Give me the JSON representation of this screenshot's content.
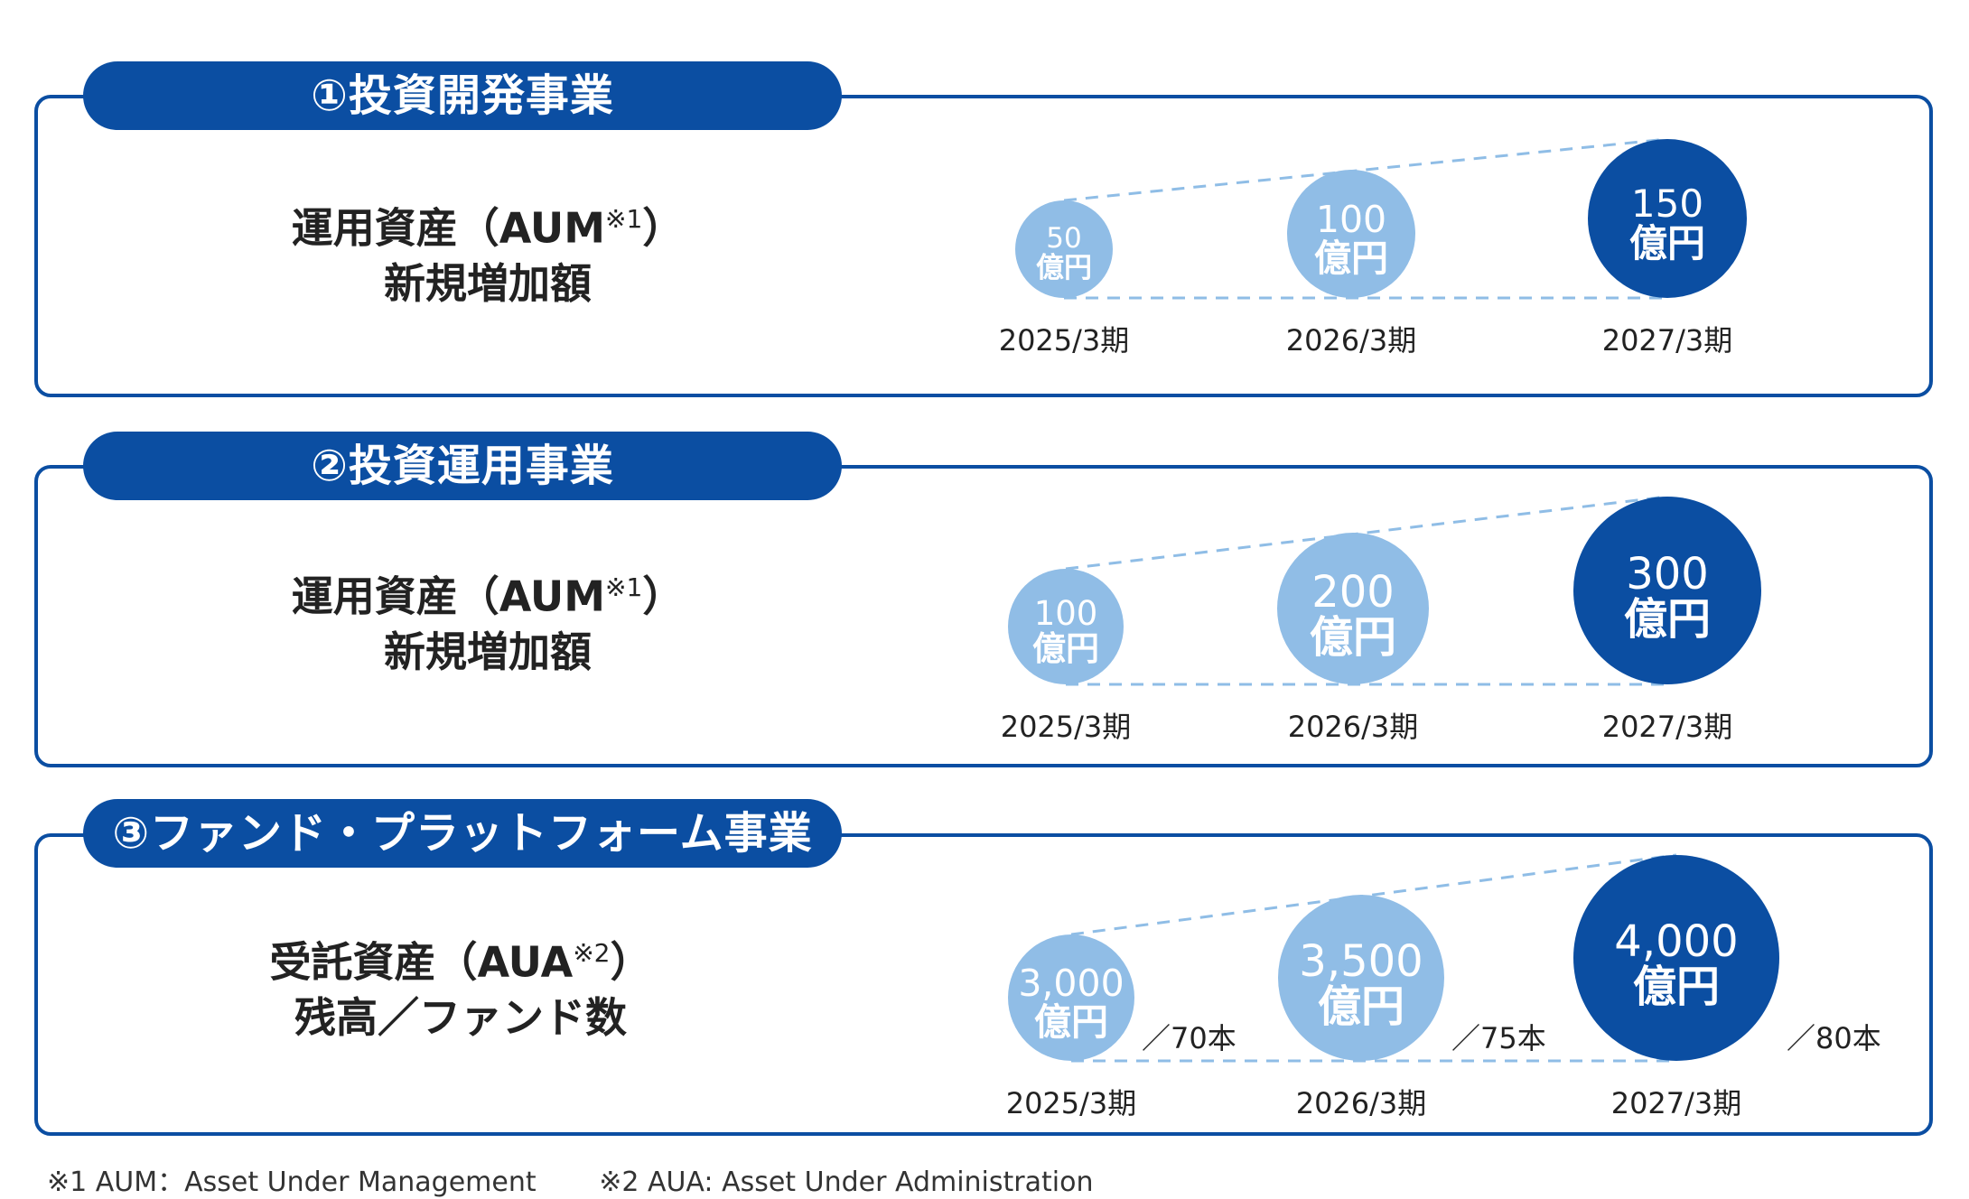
{
  "colors": {
    "primary": "#0b4ea2",
    "light": "#90bde6",
    "dashed": "#8fbde6"
  },
  "sections": [
    {
      "header": "①投資開発事業",
      "metric_line1": "運用資産（AUM",
      "metric_note": "※1",
      "metric_line1_end": "）",
      "metric_line2": "新規増加額"
    },
    {
      "header": "②投資運用事業",
      "metric_line1": "運用資産（AUM",
      "metric_note": "※1",
      "metric_line1_end": "）",
      "metric_line2": "新規増加額"
    },
    {
      "header": "③ファンド・プラットフォーム事業",
      "metric_line1": "受託資産（AUA",
      "metric_note": "※2",
      "metric_line1_end": "）",
      "metric_line2": "残高／ファンド数"
    }
  ],
  "chart_data": [
    {
      "type": "bubble",
      "categories": [
        "2025/3期",
        "2026/3期",
        "2027/3期"
      ],
      "values": [
        50,
        100,
        150
      ],
      "value_labels": [
        "50",
        "100",
        "150"
      ],
      "unit": "億円"
    },
    {
      "type": "bubble",
      "categories": [
        "2025/3期",
        "2026/3期",
        "2027/3期"
      ],
      "values": [
        100,
        200,
        300
      ],
      "value_labels": [
        "100",
        "200",
        "300"
      ],
      "unit": "億円"
    },
    {
      "type": "bubble",
      "categories": [
        "2025/3期",
        "2026/3期",
        "2027/3期"
      ],
      "values": [
        3000,
        3500,
        4000
      ],
      "value_labels": [
        "3,000",
        "3,500",
        "4,000"
      ],
      "unit": "億円",
      "fund_counts": [
        "／70本",
        "／75本",
        "／80本"
      ]
    }
  ],
  "footnotes": [
    "※1 AUM：Asset Under Management",
    "※2 AUA: Asset Under Administration"
  ]
}
